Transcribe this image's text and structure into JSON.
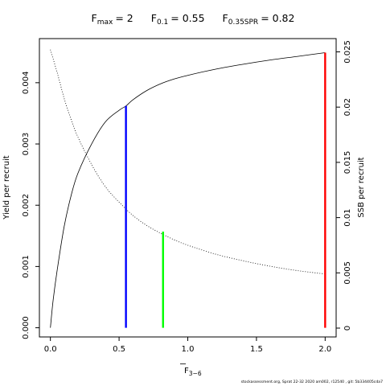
{
  "chart_data": {
    "type": "line",
    "title_parts": {
      "fmax_label": "F",
      "fmax_sub": "max",
      "fmax_value": "= 2",
      "f01_label": "F",
      "f01_sub": "0.1",
      "f01_value": "= 0.55",
      "fspr_label": "F",
      "fspr_sub": "0.35SPR",
      "fspr_value": "= 0.82"
    },
    "xlabel": {
      "main": "F",
      "sub": "3−6"
    },
    "ylabel_left": "Yield per recruit",
    "ylabel_right": "SSB per recruit",
    "xlim": [
      -0.08,
      2.08
    ],
    "ylim_left": [
      -0.00015,
      0.00472
    ],
    "ylim_right": [
      -0.0008,
      0.0262
    ],
    "x_ticks": [
      {
        "value": 0.0,
        "label": "0.0"
      },
      {
        "value": 0.5,
        "label": "0.5"
      },
      {
        "value": 1.0,
        "label": "1.0"
      },
      {
        "value": 1.5,
        "label": "1.5"
      },
      {
        "value": 2.0,
        "label": "2.0"
      }
    ],
    "y_left_ticks": [
      {
        "value": 0.0,
        "label": "0.000"
      },
      {
        "value": 0.001,
        "label": "0.001"
      },
      {
        "value": 0.002,
        "label": "0.002"
      },
      {
        "value": 0.003,
        "label": "0.003"
      },
      {
        "value": 0.004,
        "label": "0.004"
      }
    ],
    "y_right_ticks": [
      {
        "value": 0.0,
        "label": "0"
      },
      {
        "value": 0.005,
        "label": "0.005"
      },
      {
        "value": 0.01,
        "label": "0.01"
      },
      {
        "value": 0.015,
        "label": "0.015"
      },
      {
        "value": 0.02,
        "label": "0.02"
      },
      {
        "value": 0.025,
        "label": "0.025"
      }
    ],
    "series": [
      {
        "axis": "left",
        "style": "solid",
        "color": "#000000",
        "x": [
          0.0,
          0.02,
          0.05,
          0.1,
          0.15,
          0.2,
          0.3,
          0.4,
          0.5,
          0.55,
          0.6,
          0.7,
          0.8,
          0.9,
          1.0,
          1.2,
          1.4,
          1.6,
          1.8,
          2.0
        ],
        "y": [
          0.0,
          0.00045,
          0.00095,
          0.00165,
          0.00215,
          0.00252,
          0.003,
          0.00336,
          0.00355,
          0.00362,
          0.00372,
          0.00387,
          0.00398,
          0.00406,
          0.00412,
          0.00422,
          0.0043,
          0.00437,
          0.00443,
          0.00449
        ]
      },
      {
        "axis": "right",
        "style": "dotted",
        "color": "#000000",
        "x": [
          0.0,
          0.05,
          0.1,
          0.15,
          0.2,
          0.3,
          0.4,
          0.5,
          0.6,
          0.7,
          0.8,
          0.9,
          1.0,
          1.2,
          1.4,
          1.6,
          1.8,
          2.0
        ],
        "y": [
          0.0252,
          0.0231,
          0.0208,
          0.0189,
          0.0173,
          0.0148,
          0.0128,
          0.0114,
          0.0102,
          0.0093,
          0.0086,
          0.008,
          0.0075,
          0.0067,
          0.0061,
          0.0056,
          0.0052,
          0.0049
        ]
      }
    ],
    "reference_lines": [
      {
        "name": "F0.1",
        "x": 0.55,
        "y_left": 0.00362,
        "color": "#0000ff"
      },
      {
        "name": "F0.35SPR",
        "x": 0.82,
        "y_left": 0.00157,
        "color": "#00ff00"
      },
      {
        "name": "Fmax",
        "x": 2.0,
        "y_left": 0.00449,
        "color": "#ff0000"
      }
    ],
    "footer": "stockassessment.org, Sprat 22-32 2020 am002, r12540 , git: 5b334405cda7"
  }
}
